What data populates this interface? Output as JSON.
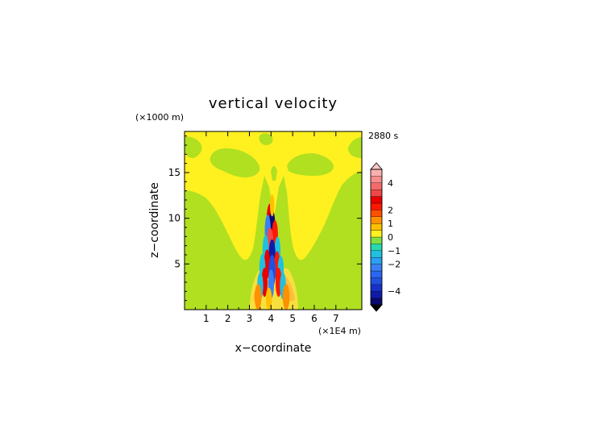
{
  "chart_data": {
    "type": "heatmap",
    "title": "vertical velocity",
    "time_label": "2880 s",
    "xlabel": "x−coordinate",
    "ylabel": "z−coordinate",
    "x_unit": "(×1E4 m)",
    "y_unit": "(×1000 m)",
    "xlim": [
      0,
      8.2
    ],
    "ylim": [
      0,
      19.5
    ],
    "x_ticks": [
      1,
      2,
      3,
      4,
      5,
      6,
      7
    ],
    "y_ticks": [
      5,
      10,
      15
    ],
    "colorbar": {
      "range": [
        -5,
        5
      ],
      "ticks": [
        4,
        2,
        1,
        0,
        -1,
        -2,
        -4
      ],
      "tick_labels": [
        "4",
        "2",
        "1",
        "0",
        "−1",
        "−2",
        "−4"
      ],
      "extend": "both",
      "bands": [
        {
          "from": -5.0,
          "to": -4.5,
          "color": "#0a0a6e"
        },
        {
          "from": -4.5,
          "to": -4.0,
          "color": "#101aa8"
        },
        {
          "from": -4.0,
          "to": -3.5,
          "color": "#1830c8"
        },
        {
          "from": -3.5,
          "to": -3.0,
          "color": "#2050e0"
        },
        {
          "from": -3.0,
          "to": -2.5,
          "color": "#2a66f0"
        },
        {
          "from": -2.5,
          "to": -2.0,
          "color": "#3a80f4"
        },
        {
          "from": -2.0,
          "to": -1.5,
          "color": "#2aa0f0"
        },
        {
          "from": -1.5,
          "to": -1.0,
          "color": "#20c0e0"
        },
        {
          "from": -1.0,
          "to": -0.5,
          "color": "#28d8b0"
        },
        {
          "from": -0.5,
          "to": 0.0,
          "color": "#80e040"
        },
        {
          "from": 0.0,
          "to": 0.5,
          "color": "#fff020"
        },
        {
          "from": 0.5,
          "to": 1.0,
          "color": "#ffc000"
        },
        {
          "from": 1.0,
          "to": 1.5,
          "color": "#ff9000"
        },
        {
          "from": 1.5,
          "to": 2.0,
          "color": "#ff5000"
        },
        {
          "from": 2.0,
          "to": 2.5,
          "color": "#ff1800"
        },
        {
          "from": 2.5,
          "to": 3.0,
          "color": "#e80000"
        },
        {
          "from": 3.0,
          "to": 3.5,
          "color": "#f04848"
        },
        {
          "from": 3.5,
          "to": 4.0,
          "color": "#f46a6a"
        },
        {
          "from": 4.0,
          "to": 4.5,
          "color": "#f88c8c"
        },
        {
          "from": 4.5,
          "to": 5.0,
          "color": "#fbb0b0"
        }
      ]
    },
    "field_regions": [
      {
        "desc": "background",
        "value": -0.2
      },
      {
        "desc": "upper-layer",
        "value": 0.2
      },
      {
        "desc": "central-column",
        "value": 0.2
      },
      {
        "desc": "jet-core",
        "values": [
          3.5,
          -3.5,
          2.5,
          -2.5,
          1.5,
          -1.2
        ]
      }
    ],
    "grid": false
  }
}
